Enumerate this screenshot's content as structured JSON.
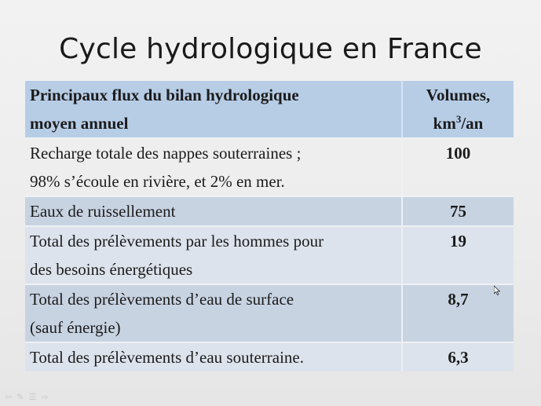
{
  "slide": {
    "title": "Cycle hydrologique en France"
  },
  "table": {
    "header": {
      "col1_line1": "Principaux flux du bilan hydrologique",
      "col1_line2": "moyen annuel",
      "col2_line1": "Volumes,",
      "col2_unit_base": "km",
      "col2_unit_sup": "3",
      "col2_unit_rest": "/an"
    },
    "rows": [
      {
        "label_line1": "Recharge totale des nappes souterraines ;",
        "label_line2": "98% s’écoule en rivière, et 2% en mer.",
        "value": "100"
      },
      {
        "label_line1": "Eaux de ruissellement",
        "label_line2": "",
        "value": "75"
      },
      {
        "label_line1": "Total des prélèvements par les hommes pour",
        "label_line2": "des besoins énergétiques",
        "value": "19"
      },
      {
        "label_line1": "Total des prélèvements d’eau de surface",
        "label_line2": "(sauf énergie)",
        "value": "8,7"
      },
      {
        "label_line1": "Total des prélèvements d’eau souterraine.",
        "label_line2": "",
        "value": "6,3"
      }
    ]
  },
  "nav_icons": [
    "arrow-left-icon",
    "pen-icon",
    "menu-icon",
    "arrow-right-icon"
  ],
  "colors": {
    "header_bg": "#b7cde6",
    "row_mid": "#c8d3e2",
    "row_light": "#dde3ec"
  }
}
